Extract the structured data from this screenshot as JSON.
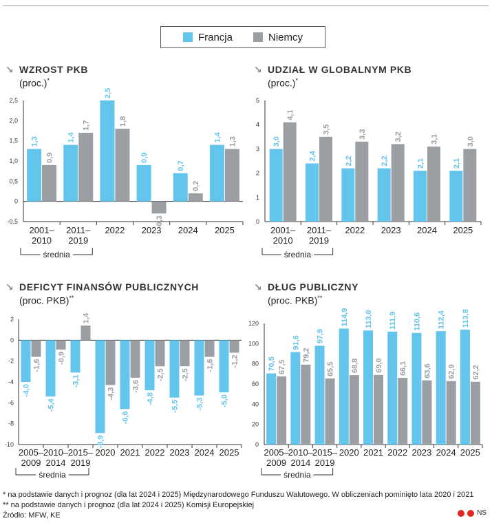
{
  "legend": {
    "france_label": "Francja",
    "germany_label": "Niemcy"
  },
  "colors": {
    "france": "#63c5ec",
    "germany": "#9b9ea3"
  },
  "panels": {
    "growth": {
      "title": "WZROST PKB",
      "subtitle": "(proc.)",
      "mark": "*"
    },
    "share": {
      "title": "UDZIAŁ W GLOBALNYM PKB",
      "subtitle": "(proc.)",
      "mark": "*"
    },
    "deficit": {
      "title": "DEFICYT FINANSÓW PUBLICZNYCH",
      "subtitle": "(proc. PKB)",
      "mark": "**"
    },
    "debt": {
      "title": "DŁUG PUBLICZNY",
      "subtitle": "(proc. PKB)",
      "mark": "**"
    }
  },
  "chart_data": [
    {
      "id": "growth",
      "type": "bar",
      "title": "WZROST PKB",
      "ylabel": "(proc.)",
      "categories": [
        [
          "2001–",
          "2010"
        ],
        [
          "2011–",
          "2019"
        ],
        [
          "2022"
        ],
        [
          "2023"
        ],
        [
          "2024"
        ],
        [
          "2025"
        ]
      ],
      "bracket_label": "średnia",
      "bracket_count": 2,
      "ylim": [
        -0.5,
        2.5
      ],
      "yticks": [
        {
          "v": 2.5,
          "t": "2,5"
        },
        {
          "v": 2.0,
          "t": "2,0"
        },
        {
          "v": 1.5,
          "t": "1,5"
        },
        {
          "v": 1.0,
          "t": "1,0"
        },
        {
          "v": 0.5,
          "t": "0,5"
        },
        {
          "v": 0,
          "t": "0"
        },
        {
          "v": -0.5,
          "t": "-0,5"
        }
      ],
      "series": [
        {
          "name": "Francja",
          "values": [
            1.3,
            1.4,
            2.5,
            0.9,
            0.7,
            1.4
          ],
          "labels": [
            "1,3",
            "1,4",
            "2,5",
            "0,9",
            "0,7",
            "1,4"
          ]
        },
        {
          "name": "Niemcy",
          "values": [
            0.9,
            1.7,
            1.8,
            -0.3,
            0.2,
            1.3
          ],
          "labels": [
            "0,9",
            "1,7",
            "1,8",
            "-0,3",
            "0,2",
            "1,3"
          ]
        }
      ]
    },
    {
      "id": "share",
      "type": "bar",
      "title": "UDZIAŁ W GLOBALNYM PKB",
      "ylabel": "(proc.)",
      "categories": [
        [
          "2001–",
          "2010"
        ],
        [
          "2011–",
          "2019"
        ],
        [
          "2022"
        ],
        [
          "2023"
        ],
        [
          "2024"
        ],
        [
          "2025"
        ]
      ],
      "bracket_label": "średnia",
      "bracket_count": 2,
      "ylim": [
        0,
        5
      ],
      "yticks": [
        {
          "v": 5,
          "t": "5"
        },
        {
          "v": 4,
          "t": "4"
        },
        {
          "v": 3,
          "t": "3"
        },
        {
          "v": 2,
          "t": "2"
        },
        {
          "v": 1,
          "t": "1"
        },
        {
          "v": 0,
          "t": "0"
        }
      ],
      "series": [
        {
          "name": "Francja",
          "values": [
            3.0,
            2.4,
            2.2,
            2.2,
            2.1,
            2.1
          ],
          "labels": [
            "3,0",
            "2,4",
            "2,2",
            "2,2",
            "2,1",
            "2,1"
          ]
        },
        {
          "name": "Niemcy",
          "values": [
            4.1,
            3.5,
            3.3,
            3.2,
            3.1,
            3.0
          ],
          "labels": [
            "4,1",
            "3,5",
            "3,3",
            "3,2",
            "3,1",
            "3,0"
          ]
        }
      ]
    },
    {
      "id": "deficit",
      "type": "bar",
      "title": "DEFICYT FINANSÓW PUBLICZNYCH",
      "ylabel": "(proc. PKB)",
      "categories": [
        [
          "2005–",
          "2009"
        ],
        [
          "2010–",
          "2014"
        ],
        [
          "2015–",
          "2019"
        ],
        [
          "2020"
        ],
        [
          "2021"
        ],
        [
          "2022"
        ],
        [
          "2023"
        ],
        [
          "2024"
        ],
        [
          "2025"
        ]
      ],
      "bracket_label": "średnia",
      "bracket_count": 3,
      "ylim": [
        -10,
        2
      ],
      "yticks": [
        {
          "v": 2,
          "t": "2"
        },
        {
          "v": 0,
          "t": "0"
        },
        {
          "v": -2,
          "t": "-2"
        },
        {
          "v": -4,
          "t": "-4"
        },
        {
          "v": -6,
          "t": "-6"
        },
        {
          "v": -8,
          "t": "-8"
        },
        {
          "v": -10,
          "t": "-10"
        }
      ],
      "series": [
        {
          "name": "Francja",
          "values": [
            -4.0,
            -5.4,
            -3.1,
            -8.9,
            -6.6,
            -4.8,
            -5.5,
            -5.3,
            -5.0
          ],
          "labels": [
            "-4,0",
            "-5,4",
            "-3,1",
            "-8,9",
            "-6,6",
            "-4,8",
            "-5,5",
            "-5,3",
            "-5,0"
          ]
        },
        {
          "name": "Niemcy",
          "values": [
            -1.6,
            -0.9,
            1.4,
            -4.3,
            -3.6,
            -2.5,
            -2.5,
            -1.6,
            -1.2
          ],
          "labels": [
            "-1,6",
            "-0,9",
            "1,4",
            "-4,3",
            "-3,6",
            "-2,5",
            "-2,5",
            "-1,6",
            "-1,2"
          ]
        }
      ]
    },
    {
      "id": "debt",
      "type": "bar",
      "title": "DŁUG PUBLICZNY",
      "ylabel": "(proc. PKB)",
      "categories": [
        [
          "2005–",
          "2009"
        ],
        [
          "2010–",
          "2014"
        ],
        [
          "2015–",
          "2019"
        ],
        [
          "2020"
        ],
        [
          "2021"
        ],
        [
          "2022"
        ],
        [
          "2023"
        ],
        [
          "2024"
        ],
        [
          "2025"
        ]
      ],
      "bracket_label": "średnia",
      "bracket_count": 3,
      "ylim": [
        0,
        120
      ],
      "yticks": [
        {
          "v": 120,
          "t": "120"
        },
        {
          "v": 100,
          "t": "100"
        },
        {
          "v": 80,
          "t": "80"
        },
        {
          "v": 60,
          "t": "60"
        },
        {
          "v": 40,
          "t": "40"
        },
        {
          "v": 20,
          "t": "20"
        },
        {
          "v": 0,
          "t": "0"
        }
      ],
      "series": [
        {
          "name": "Francja",
          "values": [
            70.5,
            91.6,
            97.9,
            114.9,
            113.0,
            111.9,
            110.6,
            112.4,
            113.8
          ],
          "labels": [
            "70,5",
            "91,6",
            "97,9",
            "114,9",
            "113,0",
            "111,9",
            "110,6",
            "112,4",
            "113,8"
          ]
        },
        {
          "name": "Niemcy",
          "values": [
            67.5,
            79.2,
            65.5,
            68.8,
            69.0,
            66.1,
            63.6,
            62.9,
            62.2
          ],
          "labels": [
            "67,5",
            "79,2",
            "65,5",
            "68,8",
            "69,0",
            "66,1",
            "63,6",
            "62,9",
            "62,2"
          ]
        }
      ]
    }
  ],
  "footnotes": {
    "note1": "* na podstawie danych i prognoz (dla lat 2024 i 2025) Międzynarodowego Funduszu Walutowego. W obliczeniach pominięto lata 2020 i 2021",
    "note2": "** na podstawie danych i prognoz (dla lat 2024 i 2025) Komisji Europejskiej",
    "source": "Źródło: MFW, KE"
  },
  "brand": {
    "label": "NS"
  }
}
